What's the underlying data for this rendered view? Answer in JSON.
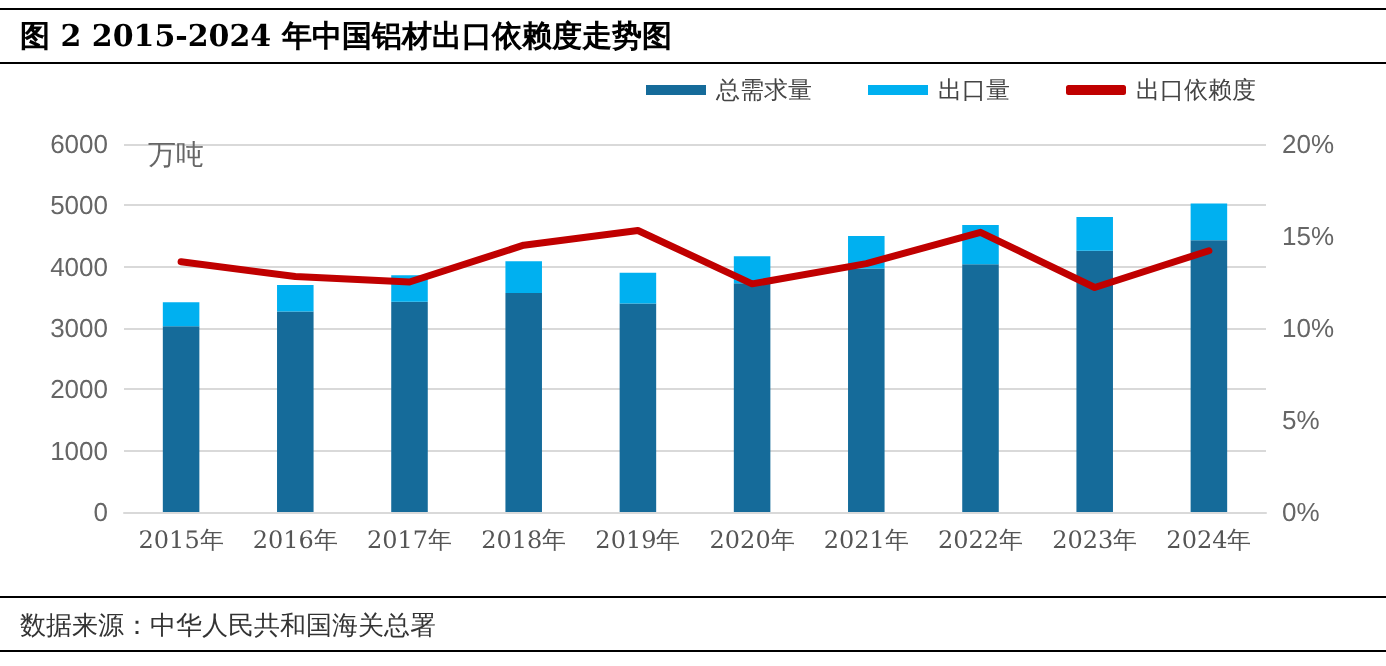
{
  "chart_data": {
    "type": "bar",
    "title": "图 2 2015-2024 年中国铝材出口依赖度走势图",
    "ylabel": "万吨",
    "annotations": [
      "数据来源：中华人民共和国海关总署"
    ],
    "categories": [
      "2015年",
      "2016年",
      "2017年",
      "2018年",
      "2019年",
      "2020年",
      "2021年",
      "2022年",
      "2023年",
      "2024年"
    ],
    "stacked": true,
    "series": [
      {
        "name": "总需求量",
        "color": "#156b9a",
        "values": [
          3030,
          3270,
          3430,
          3570,
          3400,
          3730,
          3970,
          4040,
          4260,
          4430
        ]
      },
      {
        "name": "出口量",
        "color": "#00b0f0",
        "values": [
          390,
          430,
          430,
          520,
          500,
          440,
          530,
          640,
          550,
          600
        ]
      },
      {
        "name": "出口依赖度",
        "type": "line",
        "axis": "y2",
        "color": "#c00000",
        "marker": "none",
        "line_style": "solid",
        "values": [
          13.6,
          12.8,
          12.5,
          14.5,
          15.3,
          12.4,
          13.5,
          15.2,
          12.2,
          14.2
        ]
      }
    ],
    "ylim": [
      0,
      6000
    ],
    "yticks": [
      0,
      1000,
      2000,
      3000,
      4000,
      5000,
      6000
    ],
    "y2lim": [
      0,
      20
    ],
    "y2ticks": [
      {
        "value": 0,
        "label": "0%"
      },
      {
        "value": 5,
        "label": "5%"
      },
      {
        "value": 10,
        "label": "10%"
      },
      {
        "value": 15,
        "label": "15%"
      },
      {
        "value": 20,
        "label": "20%"
      }
    ],
    "grid": "y",
    "legend": "top right"
  }
}
